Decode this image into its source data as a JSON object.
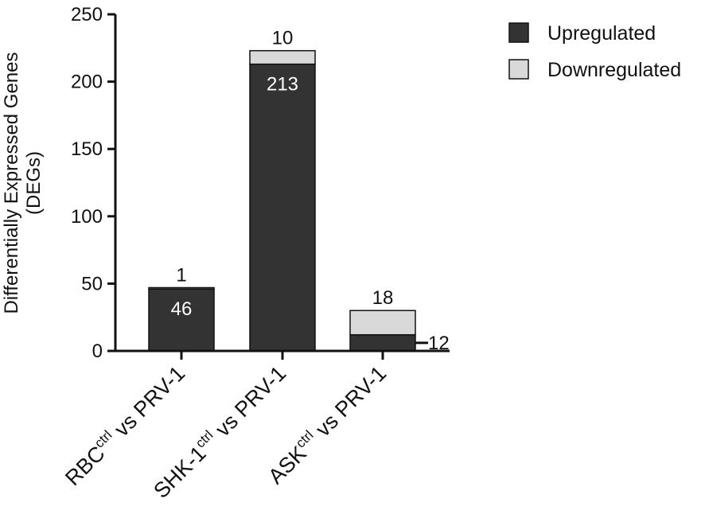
{
  "chart_data": {
    "type": "bar",
    "stacked": true,
    "ylabel_line1": "Differentially Expressed Genes",
    "ylabel_line2": "(DEGs)",
    "ylim": [
      0,
      250
    ],
    "yticks": [
      0,
      50,
      100,
      150,
      200,
      250
    ],
    "categories": [
      {
        "base": "RBC",
        "sup": "ctrl",
        "suffix": " vs PRV-1"
      },
      {
        "base": "SHK-1",
        "sup": "ctrl",
        "suffix": " vs PRV-1"
      },
      {
        "base": "ASK",
        "sup": "ctrl",
        "suffix": " vs PRV-1"
      }
    ],
    "series": [
      {
        "name": "Upregulated",
        "values": [
          46,
          213,
          12
        ],
        "color": "#333333"
      },
      {
        "name": "Downregulated",
        "values": [
          1,
          10,
          18
        ],
        "color": "#d9d9d9"
      }
    ],
    "value_labels": {
      "upregulated": [
        "46",
        "213",
        "12"
      ],
      "downregulated": [
        "1",
        "10",
        "18"
      ]
    },
    "legend_position": "top-right",
    "grid": false
  }
}
